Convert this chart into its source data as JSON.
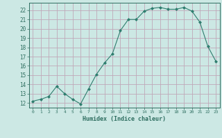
{
  "x": [
    0,
    1,
    2,
    3,
    4,
    5,
    6,
    7,
    8,
    9,
    10,
    11,
    12,
    13,
    14,
    15,
    16,
    17,
    18,
    19,
    20,
    21,
    22,
    23
  ],
  "y": [
    12.2,
    12.4,
    12.7,
    13.8,
    13.0,
    12.4,
    11.9,
    13.5,
    15.1,
    16.3,
    17.3,
    19.8,
    21.0,
    21.0,
    21.9,
    22.2,
    22.3,
    22.1,
    22.1,
    22.3,
    21.9,
    20.7,
    18.1,
    16.5
  ],
  "line_color": "#2e7d6e",
  "bg_color": "#cce8e4",
  "grid_color": "#c0a8b8",
  "xlabel": "Humidex (Indice chaleur)",
  "ylabel_ticks": [
    12,
    13,
    14,
    15,
    16,
    17,
    18,
    19,
    20,
    21,
    22
  ],
  "ylim": [
    11.5,
    22.8
  ],
  "xlim": [
    -0.5,
    23.5
  ],
  "xlabel_color": "#2e6e60",
  "tick_color": "#2e6e60",
  "spine_color": "#2e6e60"
}
